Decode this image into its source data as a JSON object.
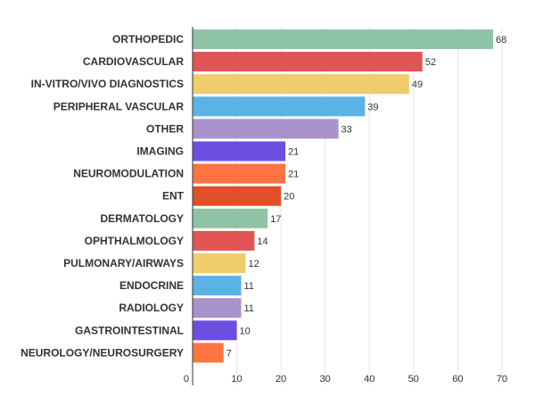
{
  "chart_data": {
    "type": "bar",
    "orientation": "horizontal",
    "categories": [
      "ORTHOPEDIC",
      "CARDIOVASCULAR",
      "IN-VITRO/VIVO DIAGNOSTICS",
      "PERIPHERAL VASCULAR",
      "OTHER",
      "IMAGING",
      "NEUROMODULATION",
      "ENT",
      "DERMATOLOGY",
      "OPHTHALMOLOGY",
      "PULMONARY/AIRWAYS",
      "ENDOCRINE",
      "RADIOLOGY",
      "GASTROINTESTINAL",
      "NEUROLOGY/NEUROSURGERY"
    ],
    "values": [
      68,
      52,
      49,
      39,
      33,
      21,
      21,
      20,
      17,
      14,
      12,
      11,
      11,
      10,
      7
    ],
    "colors": [
      "#8fc3a6",
      "#e05454",
      "#f0cc6c",
      "#5ab2e5",
      "#a991c9",
      "#6c4fe0",
      "#ff7340",
      "#e04f28",
      "#8fc3a6",
      "#e05454",
      "#f0cc6c",
      "#5ab2e5",
      "#a991c9",
      "#6c4fe0",
      "#ff7340"
    ],
    "xticks": [
      0,
      10,
      20,
      30,
      40,
      50,
      60,
      70
    ],
    "xlim": [
      0,
      72
    ],
    "title": "",
    "xlabel": "",
    "ylabel": "",
    "grid": true,
    "legend": "none",
    "data_labels": true
  }
}
